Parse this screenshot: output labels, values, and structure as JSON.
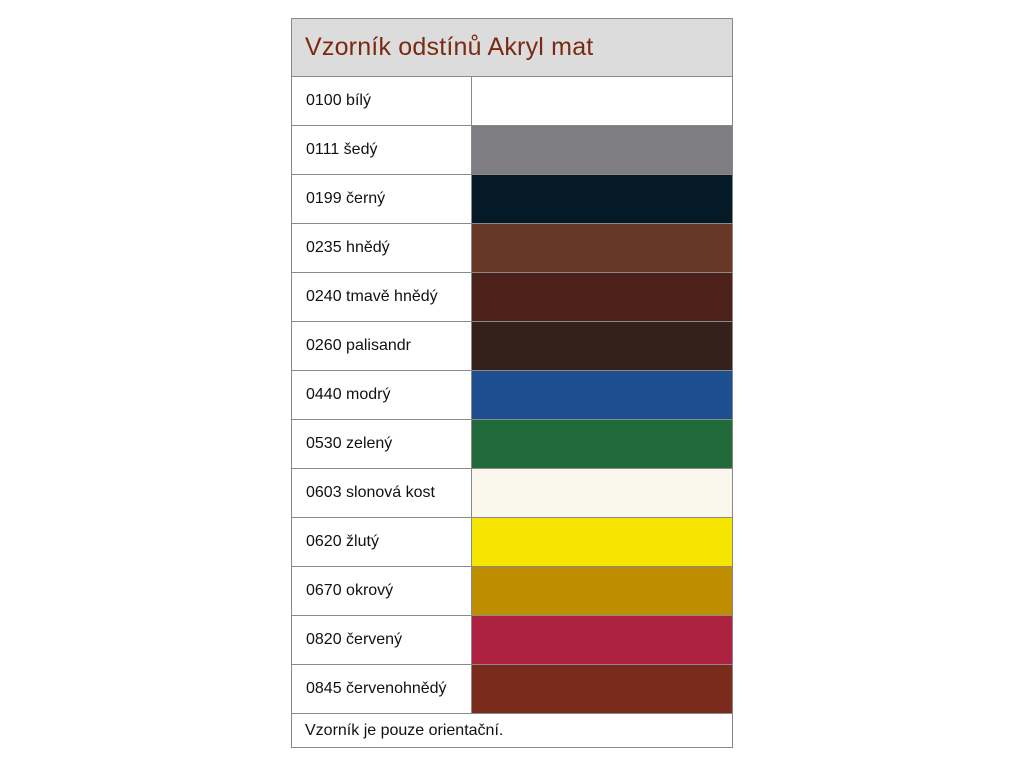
{
  "title": "Vzorník odstínů Akryl mat",
  "colors": {
    "title_text": "#7a2a10",
    "header_bg": "#dcdcdc"
  },
  "rows": [
    {
      "label": "0100 bílý",
      "color": "#ffffff"
    },
    {
      "label": "0111 šedý",
      "color": "#7e7d82"
    },
    {
      "label": "0199 černý",
      "color": "#041a26"
    },
    {
      "label": "0235 hnědý",
      "color": "#673826"
    },
    {
      "label": "0240 tmavě hnědý",
      "color": "#4b211a"
    },
    {
      "label": "0260 palisandr",
      "color": "#35211b"
    },
    {
      "label": "0440 modrý",
      "color": "#1d4e8f"
    },
    {
      "label": "0530 zelený",
      "color": "#216b3b"
    },
    {
      "label": "0603 slonová kost",
      "color": "#faf7ec"
    },
    {
      "label": "0620 žlutý",
      "color": "#f6e500"
    },
    {
      "label": "0670 okrový",
      "color": "#bf8e00"
    },
    {
      "label": "0820 červený",
      "color": "#ad2240"
    },
    {
      "label": "0845 červenohnědý",
      "color": "#7a2b1c"
    }
  ],
  "footer": "Vzorník je pouze orientační."
}
